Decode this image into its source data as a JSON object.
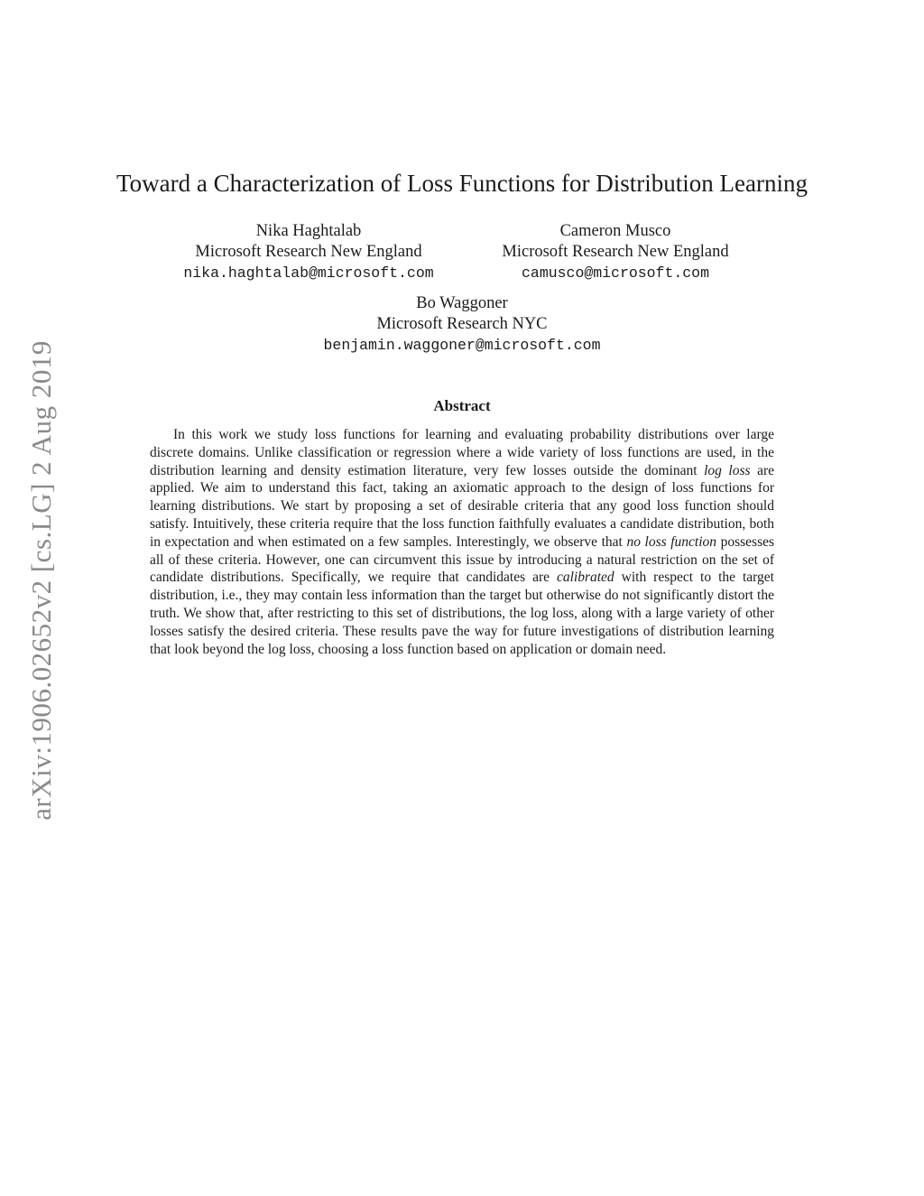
{
  "watermark": {
    "text": "arXiv:1906.02652v2 [cs.LG] 2 Aug 2019",
    "color": "#8a8a8a"
  },
  "title": "Toward a Characterization of Loss Functions for Distribution Learning",
  "authors": [
    {
      "name": "Nika Haghtalab",
      "affiliation": "Microsoft Research New England",
      "email": "nika.haghtalab@microsoft.com"
    },
    {
      "name": "Cameron Musco",
      "affiliation": "Microsoft Research New England",
      "email": "camusco@microsoft.com"
    },
    {
      "name": "Bo Waggoner",
      "affiliation": "Microsoft Research NYC",
      "email": "benjamin.waggoner@microsoft.com"
    }
  ],
  "abstract": {
    "heading": "Abstract",
    "segments": [
      {
        "style": "normal",
        "text": "In this work we study loss functions for learning and evaluating probability distributions over large discrete domains. Unlike classification or regression where a wide variety of loss functions are used, in the distribution learning and density estimation literature, very few losses outside the dominant "
      },
      {
        "style": "italic",
        "text": "log loss"
      },
      {
        "style": "normal",
        "text": " are applied. We aim to understand this fact, taking an axiomatic approach to the design of loss functions for learning distributions. We start by proposing a set of desirable criteria that any good loss function should satisfy. Intuitively, these criteria require that the loss function faithfully evaluates a candidate distribution, both in expectation and when estimated on a few samples. Interestingly, we observe that "
      },
      {
        "style": "italic",
        "text": "no loss function"
      },
      {
        "style": "normal",
        "text": " possesses all of these criteria. However, one can circumvent this issue by introducing a natural restriction on the set of candidate distributions. Specifically, we require that candidates are "
      },
      {
        "style": "italic",
        "text": "calibrated"
      },
      {
        "style": "normal",
        "text": " with respect to the target distribution, i.e., they may contain less information than the target but otherwise do not significantly distort the truth. We show that, after restricting to this set of distributions, the log loss, along with a large variety of other losses satisfy the desired criteria. These results pave the way for future investigations of distribution learning that look beyond the log loss, choosing a loss function based on application or domain need."
      }
    ]
  },
  "colors": {
    "background": "#ffffff",
    "text": "#1b1b1b",
    "watermark": "#8a8a8a"
  }
}
